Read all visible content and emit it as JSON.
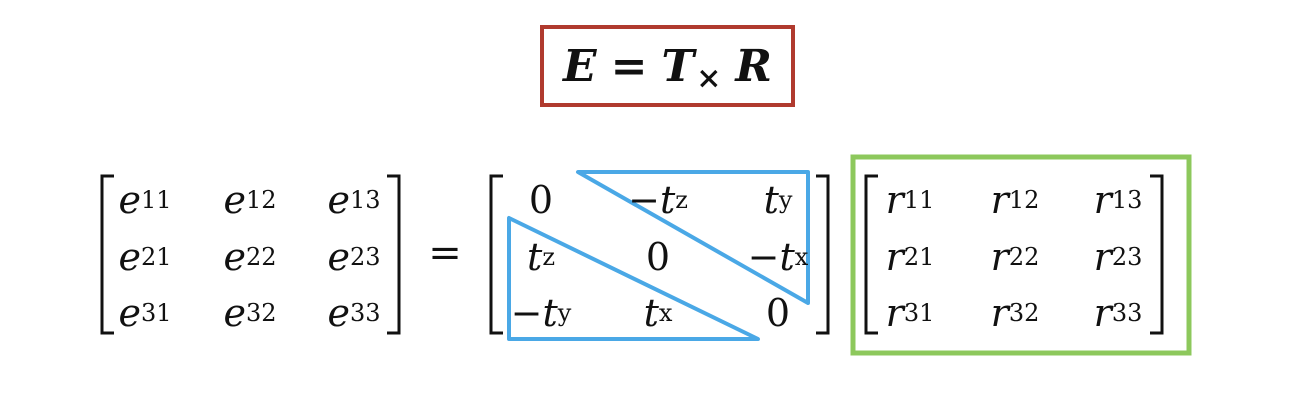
{
  "equation": {
    "lhs": "E",
    "equals": "=",
    "t": "T",
    "t_sub": "×",
    "r": "R"
  },
  "equals_sign": "=",
  "matrix_e": [
    [
      {
        "b": "e",
        "s": "11"
      },
      {
        "b": "e",
        "s": "12"
      },
      {
        "b": "e",
        "s": "13"
      }
    ],
    [
      {
        "b": "e",
        "s": "21"
      },
      {
        "b": "e",
        "s": "22"
      },
      {
        "b": "e",
        "s": "23"
      }
    ],
    [
      {
        "b": "e",
        "s": "31"
      },
      {
        "b": "e",
        "s": "32"
      },
      {
        "b": "e",
        "s": "33"
      }
    ]
  ],
  "matrix_t": [
    [
      {
        "b": "0",
        "s": ""
      },
      {
        "b": "−t",
        "s": "z"
      },
      {
        "b": "t",
        "s": "y"
      }
    ],
    [
      {
        "b": "t",
        "s": "z"
      },
      {
        "b": "0",
        "s": ""
      },
      {
        "b": "−t",
        "s": "x"
      }
    ],
    [
      {
        "b": "−t",
        "s": "y"
      },
      {
        "b": "t",
        "s": "x"
      },
      {
        "b": "0",
        "s": ""
      }
    ]
  ],
  "matrix_r": [
    [
      {
        "b": "r",
        "s": "11"
      },
      {
        "b": "r",
        "s": "12"
      },
      {
        "b": "r",
        "s": "13"
      }
    ],
    [
      {
        "b": "r",
        "s": "21"
      },
      {
        "b": "r",
        "s": "22"
      },
      {
        "b": "r",
        "s": "23"
      }
    ],
    [
      {
        "b": "r",
        "s": "31"
      },
      {
        "b": "r",
        "s": "32"
      },
      {
        "b": "r",
        "s": "33"
      }
    ]
  ],
  "colors": {
    "equation_box": "#b03a2e",
    "skew_triangles": "#4aa8e6",
    "rotation_box": "#8dc85c",
    "text": "#111111"
  }
}
